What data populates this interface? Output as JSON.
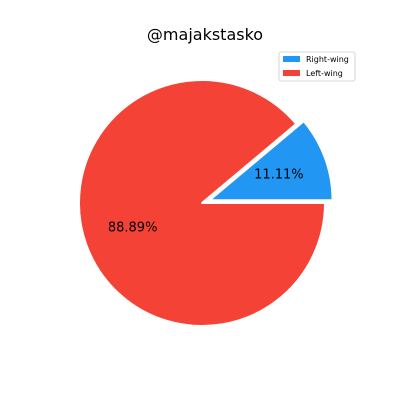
{
  "chart_data": {
    "type": "pie",
    "title": "@majakstasko",
    "series": [
      {
        "name": "Right-wing",
        "value": 11.11,
        "label": "11.11%",
        "color": "#2196f3",
        "exploded": true
      },
      {
        "name": "Left-wing",
        "value": 88.89,
        "label": "88.89%",
        "color": "#f44336",
        "exploded": false
      }
    ],
    "start_angle_deg": 0,
    "direction": "counterclockwise",
    "legend_position": "top-right",
    "grid": false
  }
}
